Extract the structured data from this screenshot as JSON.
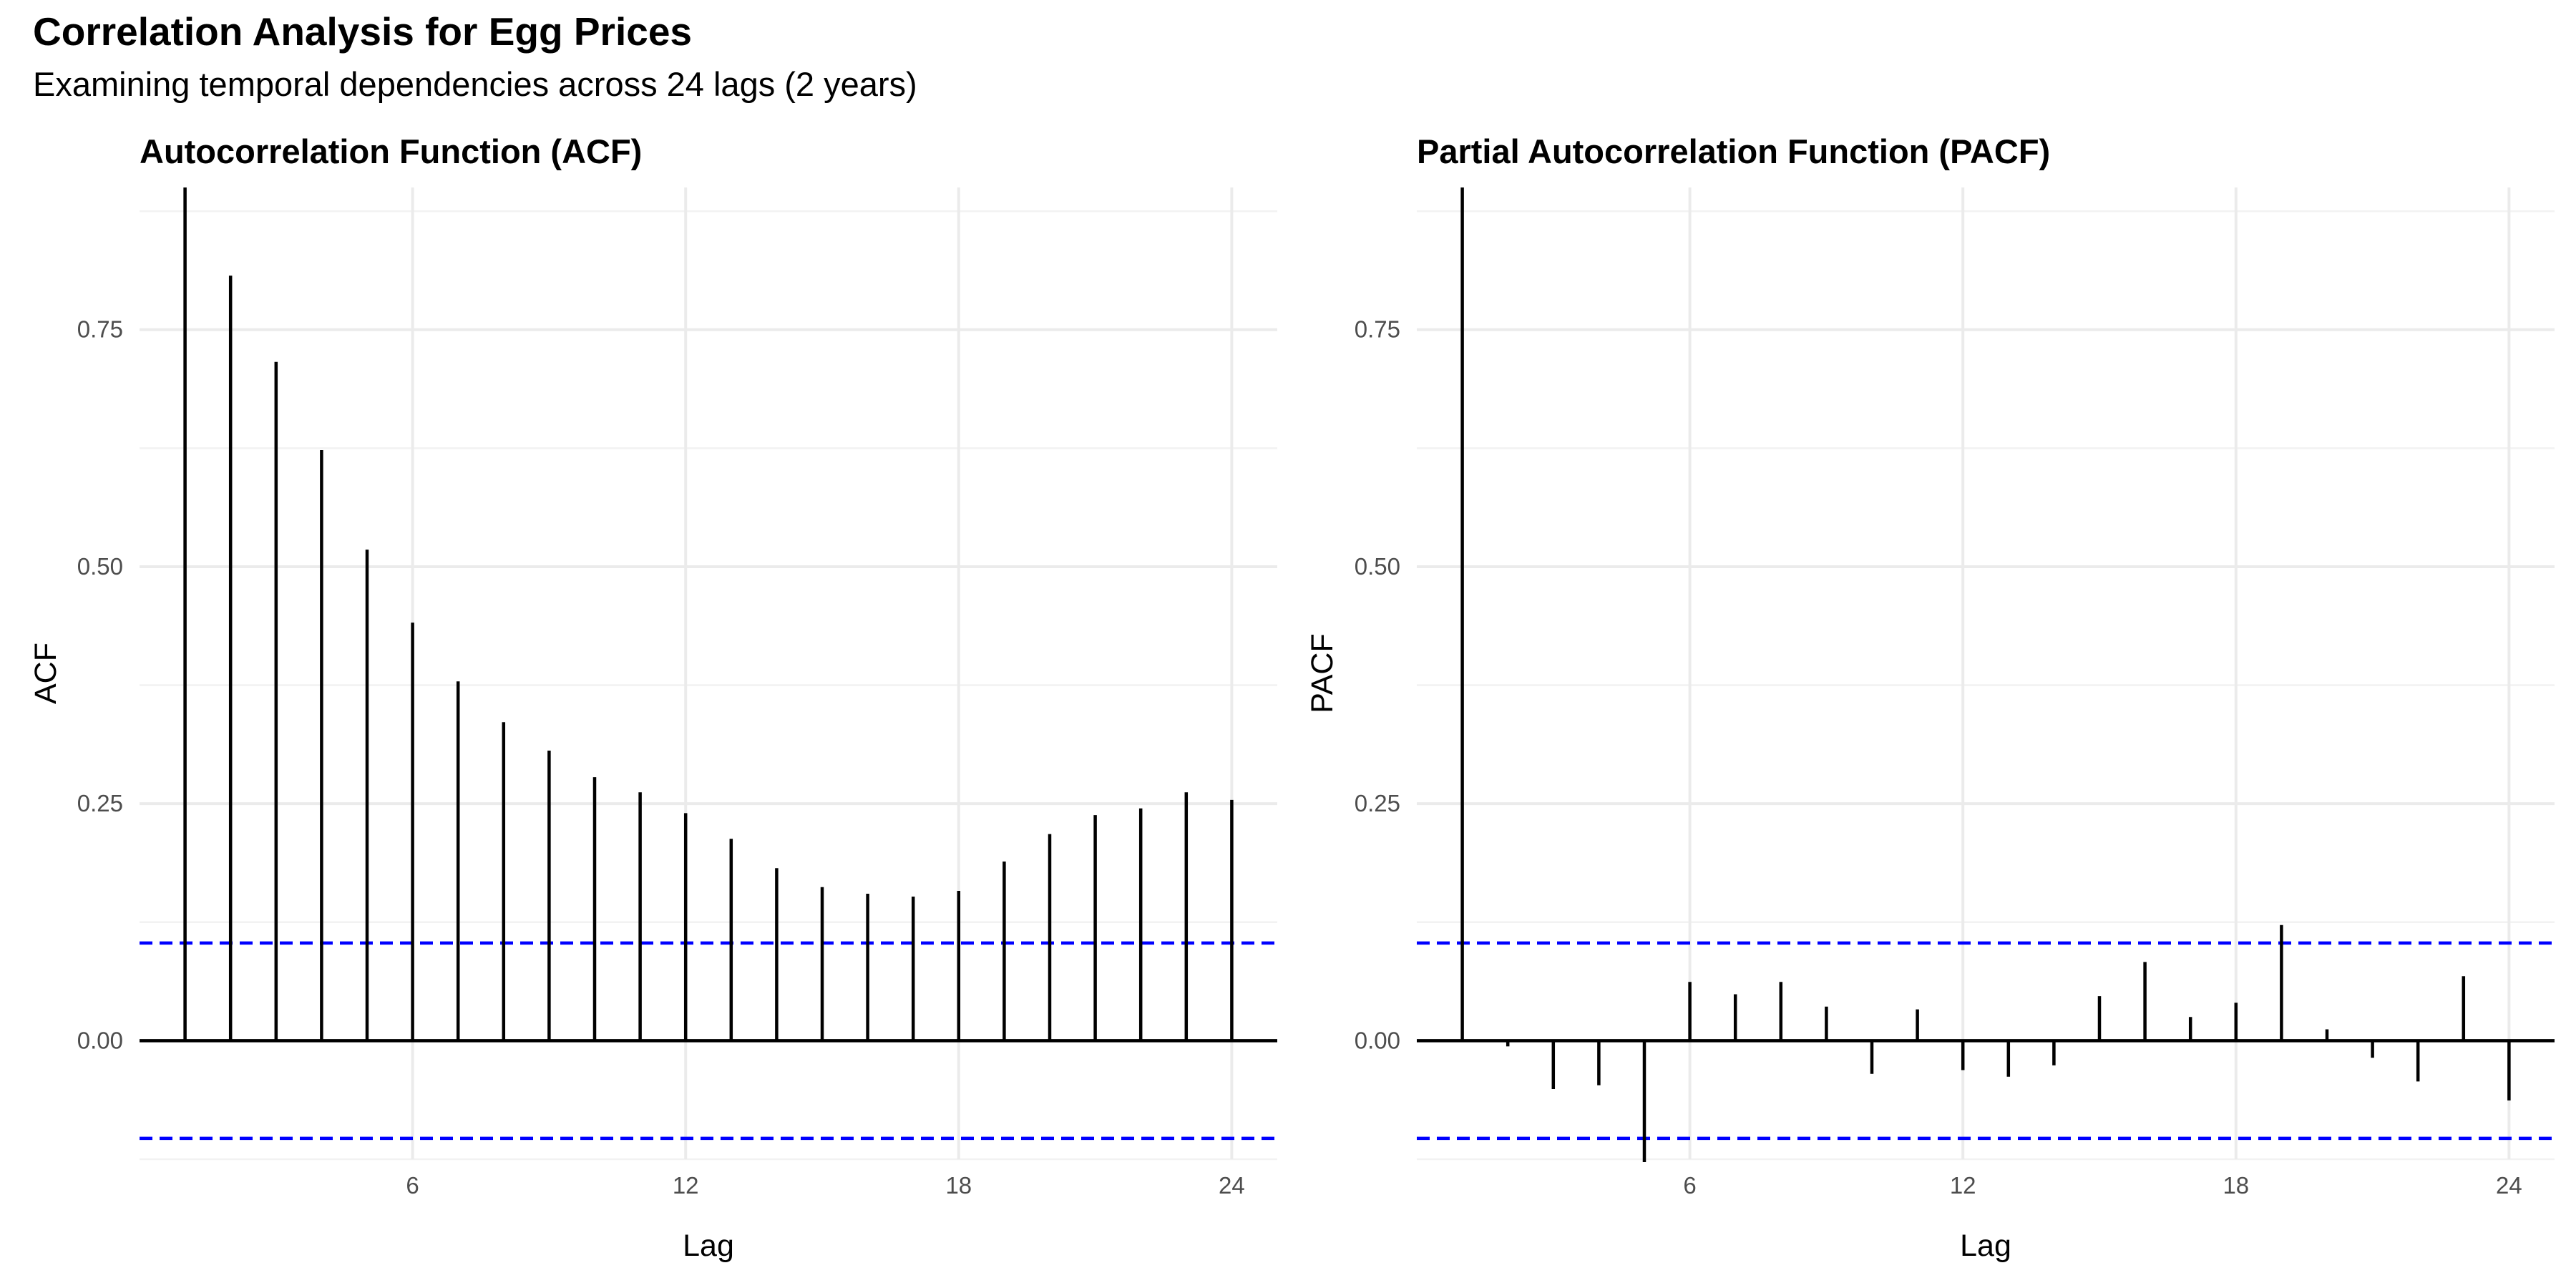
{
  "title": "Correlation Analysis for Egg Prices",
  "subtitle": "Examining temporal dependencies across 24 lags (2 years)",
  "colors": {
    "spike": "#000000",
    "confidence_band": "#0000ff",
    "grid": "#ebebeb",
    "tick_text": "#4d4d4d"
  },
  "chart_data": [
    {
      "type": "bar",
      "style": "spike",
      "title": "Autocorrelation Function (ACF)",
      "xlabel": "Lag",
      "ylabel": "ACF",
      "x": [
        1,
        2,
        3,
        4,
        5,
        6,
        7,
        8,
        9,
        10,
        11,
        12,
        13,
        14,
        15,
        16,
        17,
        18,
        19,
        20,
        21,
        22,
        23,
        24
      ],
      "values": [
        0.9,
        0.807,
        0.716,
        0.623,
        0.518,
        0.441,
        0.379,
        0.336,
        0.306,
        0.278,
        0.262,
        0.24,
        0.213,
        0.182,
        0.162,
        0.155,
        0.152,
        0.158,
        0.189,
        0.218,
        0.238,
        0.245,
        0.262,
        0.254
      ],
      "confidence_limits": [
        0.103,
        -0.103
      ],
      "xlim": [
        0,
        25
      ],
      "ylim": [
        -0.125,
        0.9
      ],
      "xticks": [
        6,
        12,
        18,
        24
      ],
      "yticks": [
        0.0,
        0.25,
        0.5,
        0.75
      ],
      "xtick_labels": [
        "6",
        "12",
        "18",
        "24"
      ],
      "ytick_labels": [
        "0.00",
        "0.25",
        "0.50",
        "0.75"
      ],
      "grid": true
    },
    {
      "type": "bar",
      "style": "spike",
      "title": "Partial Autocorrelation Function (PACF)",
      "xlabel": "Lag",
      "ylabel": "PACF",
      "x": [
        1,
        2,
        3,
        4,
        5,
        6,
        7,
        8,
        9,
        10,
        11,
        12,
        13,
        14,
        15,
        16,
        17,
        18,
        19,
        20,
        21,
        22,
        23,
        24
      ],
      "values": [
        0.9,
        -0.006,
        -0.051,
        -0.047,
        -0.128,
        0.062,
        0.049,
        0.062,
        0.036,
        -0.035,
        0.033,
        -0.031,
        -0.038,
        -0.026,
        0.047,
        0.083,
        0.025,
        0.04,
        0.122,
        0.012,
        -0.018,
        -0.043,
        0.068,
        -0.063
      ],
      "confidence_limits": [
        0.103,
        -0.103
      ],
      "xlim": [
        0,
        25
      ],
      "ylim": [
        -0.125,
        0.9
      ],
      "xticks": [
        6,
        12,
        18,
        24
      ],
      "yticks": [
        0.0,
        0.25,
        0.5,
        0.75
      ],
      "xtick_labels": [
        "6",
        "12",
        "18",
        "24"
      ],
      "ytick_labels": [
        "0.00",
        "0.25",
        "0.50",
        "0.75"
      ],
      "grid": true
    }
  ]
}
